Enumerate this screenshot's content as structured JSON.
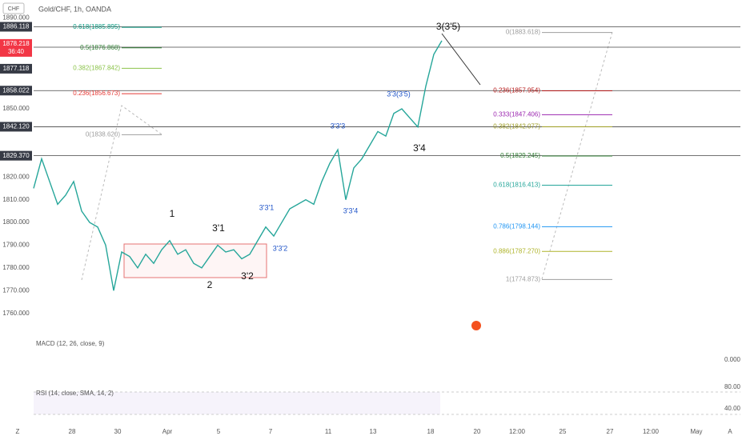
{
  "header": {
    "currency": "CHF",
    "symbol": "Gold/CHF, 1h, OANDA"
  },
  "price_axis": {
    "ylim": [
      1711.3,
      1897.9
    ],
    "yticks": [
      {
        "value": 1890,
        "label": "1890.000"
      },
      {
        "value": 1850,
        "label": "1850.000"
      },
      {
        "value": 1820,
        "label": "1820.000"
      },
      {
        "value": 1810,
        "label": "1810.000"
      },
      {
        "value": 1800,
        "label": "1800.000"
      },
      {
        "value": 1790,
        "label": "1790.000"
      },
      {
        "value": 1780,
        "label": "1780.000"
      },
      {
        "value": 1770,
        "label": "1770.000"
      },
      {
        "value": 1760,
        "label": "1760.000"
      }
    ]
  },
  "price_lines": [
    1886.118,
    1877.118,
    1858.022,
    1842.12,
    1829.37
  ],
  "price_line_labels": [
    "1886.118",
    "1877.118",
    "1858.022",
    "1842.120",
    "1829.370"
  ],
  "last_price": {
    "value": 1878.218,
    "countdown": "36:40"
  },
  "date_axis": [
    "28",
    "30",
    "Apr",
    "5",
    "7",
    "11",
    "13",
    "18",
    "20",
    "12:00",
    "25",
    "27",
    "12:00",
    "May"
  ],
  "fib_left": [
    {
      "label": "0.618(1885.895)",
      "price": 1885.895,
      "color": "#089981"
    },
    {
      "label": "0.5(1876.868)",
      "price": 1876.868,
      "color": "#2e7d32"
    },
    {
      "label": "0.382(1867.842)",
      "price": 1867.842,
      "color": "#8bc34a"
    },
    {
      "label": "0.236(1856.673)",
      "price": 1856.673,
      "color": "#e53935"
    },
    {
      "label": "0(1838.620)",
      "price": 1838.62,
      "color": "#9e9e9e"
    }
  ],
  "fib_right": [
    {
      "label": "0(1883.618)",
      "price": 1883.618,
      "color": "#9e9e9e"
    },
    {
      "label": "0.236(1857.954)",
      "price": 1857.954,
      "color": "#b71c1c"
    },
    {
      "label": "0.333(1847.406)",
      "price": 1847.406,
      "color": "#9c27b0"
    },
    {
      "label": "0.382(1842.077)",
      "price": 1842.077,
      "color": "#9e9d24"
    },
    {
      "label": "0.5(1829.245)",
      "price": 1829.245,
      "color": "#2e7d32"
    },
    {
      "label": "0.618(1816.413)",
      "price": 1816.413,
      "color": "#26a69a"
    },
    {
      "label": "0.786(1798.144)",
      "price": 1798.144,
      "color": "#2196f3"
    },
    {
      "label": "0.886(1787.270)",
      "price": 1787.27,
      "color": "#afb42b"
    },
    {
      "label": "1(1774.873)",
      "price": 1774.873,
      "color": "#9e9e9e"
    }
  ],
  "waves": [
    "1",
    "3'1",
    "2",
    "3'2",
    "3'3'1",
    "3'3'2",
    "3'3'3",
    "3'3'4",
    "3'3(3'5)",
    "3'4",
    "3(3'5)"
  ],
  "price_series": [
    1815,
    1828,
    1818,
    1808,
    1812,
    1818,
    1805,
    1800,
    1798,
    1790,
    1770,
    1787,
    1785,
    1780,
    1786,
    1782,
    1788,
    1792,
    1786,
    1788,
    1782,
    1780,
    1785,
    1790,
    1787,
    1788,
    1784,
    1786,
    1792,
    1798,
    1794,
    1800,
    1806,
    1808,
    1810,
    1808,
    1818,
    1826,
    1832,
    1810,
    1824,
    1828,
    1834,
    1840,
    1838,
    1848,
    1850,
    1846,
    1842,
    1860,
    1874,
    1880
  ],
  "indicators": {
    "macd": "MACD (12, 26, close, 9)",
    "macd_zero": "0.000",
    "rsi": "RSI (14, close, SMA, 14, 2)",
    "rsi_high": "80.00",
    "rsi_low": "40.00"
  },
  "corners": {
    "left": "Z",
    "right": "A"
  }
}
